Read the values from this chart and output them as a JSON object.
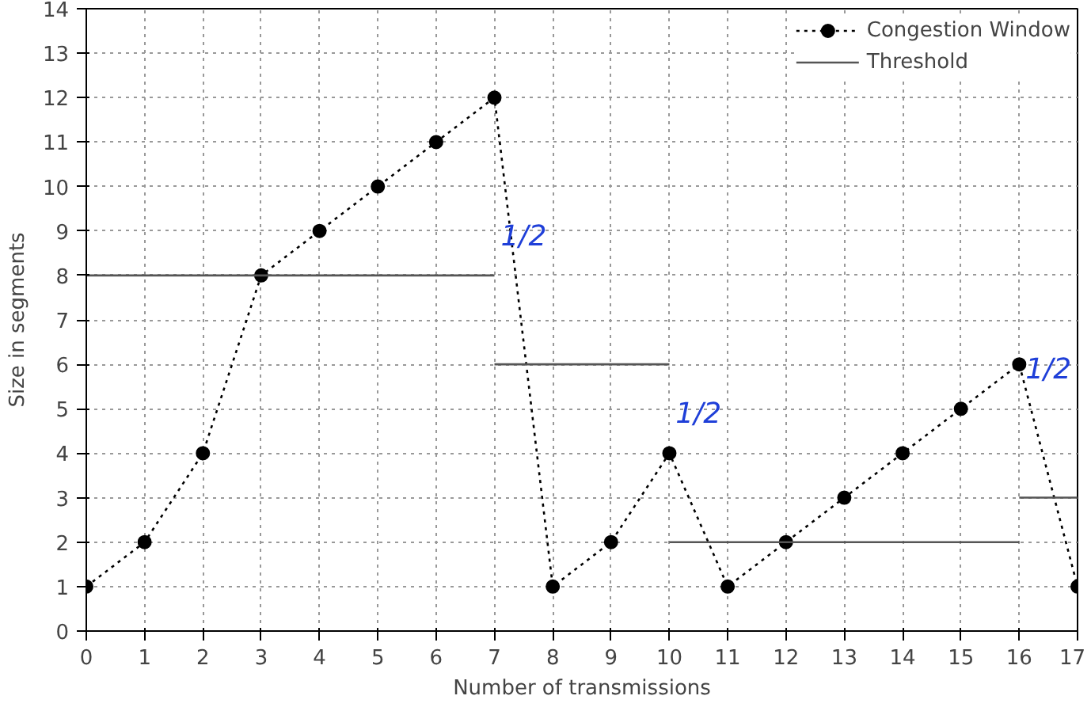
{
  "chart_data": {
    "type": "line",
    "xlabel": "Number of transmissions",
    "ylabel": "Size in segments",
    "x": [
      0,
      1,
      2,
      3,
      4,
      5,
      6,
      7,
      8,
      9,
      10,
      11,
      12,
      13,
      14,
      15,
      16,
      17
    ],
    "series": [
      {
        "name": "Congestion Window",
        "color": "#000000",
        "marker": "circle",
        "line_style": "dotted",
        "values": [
          1,
          2,
          4,
          8,
          9,
          10,
          11,
          12,
          1,
          2,
          4,
          1,
          2,
          3,
          4,
          5,
          6,
          1
        ]
      },
      {
        "name": "Threshold",
        "color": "#555555",
        "marker": "none",
        "line_style": "solid",
        "x": [
          0,
          7,
          null,
          7,
          10,
          null,
          10,
          16,
          null,
          16,
          17
        ],
        "values": [
          8,
          8,
          null,
          6,
          6,
          null,
          2,
          2,
          null,
          3,
          3
        ]
      }
    ],
    "xlim": [
      0,
      17
    ],
    "ylim": [
      0,
      14
    ],
    "xticks": [
      0,
      1,
      2,
      3,
      4,
      5,
      6,
      7,
      8,
      9,
      10,
      11,
      12,
      13,
      14,
      15,
      16,
      17
    ],
    "yticks": [
      0,
      1,
      2,
      3,
      4,
      5,
      6,
      7,
      8,
      9,
      10,
      11,
      12,
      13,
      14
    ],
    "grid": true,
    "legend": "top right",
    "annotations": [
      "1/2",
      "1/2",
      "1/2"
    ]
  }
}
